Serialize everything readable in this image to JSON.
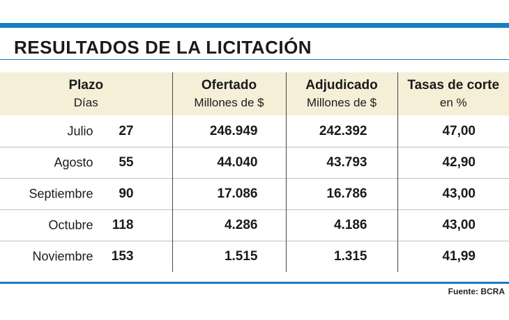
{
  "title": "RESULTADOS DE LA LICITACIÓN",
  "source": "Fuente: BCRA",
  "chart_data": {
    "type": "table",
    "title": "RESULTADOS DE LA LICITACIÓN",
    "columns": [
      {
        "label": "Plazo",
        "sublabel": "Días"
      },
      {
        "label": "Ofertado",
        "sublabel": "Millones de $"
      },
      {
        "label": "Adjudicado",
        "sublabel": "Millones de $"
      },
      {
        "label": "Tasas de corte",
        "sublabel": "en %"
      }
    ],
    "rows": [
      {
        "mes": "Julio",
        "dias": "27",
        "ofertado": "246.949",
        "adjudicado": "242.392",
        "tasa": "47,00"
      },
      {
        "mes": "Agosto",
        "dias": "55",
        "ofertado": "44.040",
        "adjudicado": "43.793",
        "tasa": "42,90"
      },
      {
        "mes": "Septiembre",
        "dias": "90",
        "ofertado": "17.086",
        "adjudicado": "16.786",
        "tasa": "43,00"
      },
      {
        "mes": "Octubre",
        "dias": "118",
        "ofertado": "4.286",
        "adjudicado": "4.186",
        "tasa": "43,00"
      },
      {
        "mes": "Noviembre",
        "dias": "153",
        "ofertado": "1.515",
        "adjudicado": "1.315",
        "tasa": "41,99"
      }
    ]
  },
  "colors": {
    "accent_rule": "#1a7cc1",
    "header_background": "#f5efd8"
  }
}
